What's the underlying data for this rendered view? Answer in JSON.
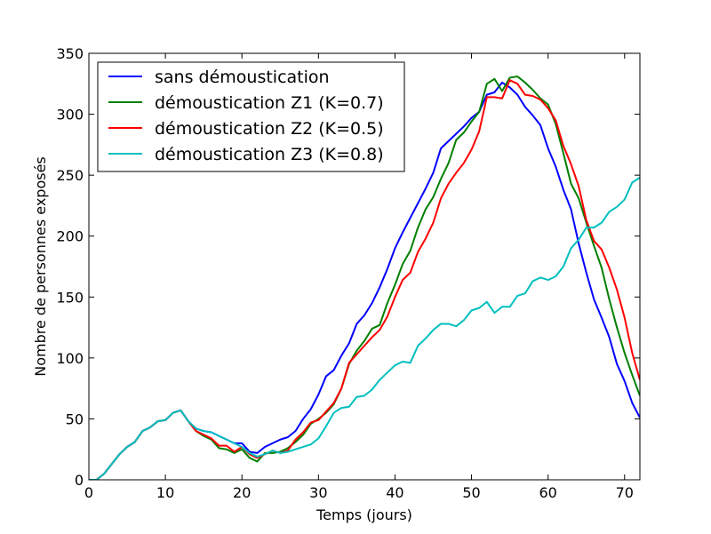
{
  "chart_data": {
    "type": "line",
    "xlabel": "Temps (jours)",
    "ylabel": "Nombre de personnes exposés",
    "xlim": [
      0,
      72
    ],
    "ylim": [
      0,
      350
    ],
    "xticks": [
      0,
      10,
      20,
      30,
      40,
      50,
      60,
      70
    ],
    "yticks": [
      0,
      50,
      100,
      150,
      200,
      250,
      300,
      350
    ],
    "grid": false,
    "legend_position": "top-left",
    "series": [
      {
        "name": "sans démoustication",
        "color": "#0000ff",
        "points": [
          [
            0,
            0
          ],
          [
            1,
            0
          ],
          [
            2,
            5
          ],
          [
            3,
            13
          ],
          [
            4,
            21
          ],
          [
            5,
            27
          ],
          [
            6,
            31
          ],
          [
            7,
            40
          ],
          [
            8,
            43
          ],
          [
            9,
            48
          ],
          [
            10,
            49
          ],
          [
            11,
            55
          ],
          [
            12,
            57
          ],
          [
            13,
            48
          ],
          [
            14,
            42
          ],
          [
            15,
            40
          ],
          [
            16,
            39
          ],
          [
            17,
            36
          ],
          [
            18,
            33
          ],
          [
            19,
            30
          ],
          [
            20,
            30
          ],
          [
            21,
            23
          ],
          [
            22,
            22
          ],
          [
            23,
            27
          ],
          [
            24,
            30
          ],
          [
            25,
            33
          ],
          [
            26,
            35
          ],
          [
            27,
            40
          ],
          [
            28,
            50
          ],
          [
            29,
            58
          ],
          [
            30,
            70
          ],
          [
            31,
            85
          ],
          [
            32,
            90
          ],
          [
            33,
            102
          ],
          [
            34,
            112
          ],
          [
            35,
            128
          ],
          [
            36,
            135
          ],
          [
            37,
            145
          ],
          [
            38,
            158
          ],
          [
            39,
            173
          ],
          [
            40,
            190
          ],
          [
            41,
            203
          ],
          [
            42,
            215
          ],
          [
            43,
            227
          ],
          [
            44,
            239
          ],
          [
            45,
            252
          ],
          [
            46,
            272
          ],
          [
            47,
            278
          ],
          [
            48,
            284
          ],
          [
            49,
            290
          ],
          [
            50,
            297
          ],
          [
            51,
            302
          ],
          [
            52,
            316
          ],
          [
            53,
            318
          ],
          [
            54,
            326
          ],
          [
            55,
            322
          ],
          [
            56,
            316
          ],
          [
            57,
            306
          ],
          [
            58,
            299
          ],
          [
            59,
            291
          ],
          [
            60,
            272
          ],
          [
            61,
            257
          ],
          [
            62,
            238
          ],
          [
            63,
            222
          ],
          [
            64,
            194
          ],
          [
            65,
            170
          ],
          [
            66,
            148
          ],
          [
            67,
            133
          ],
          [
            68,
            117
          ],
          [
            69,
            95
          ],
          [
            70,
            81
          ],
          [
            71,
            63
          ],
          [
            72,
            51
          ]
        ]
      },
      {
        "name": "démoustication Z1 (K=0.7)",
        "color": "#008000",
        "points": [
          [
            0,
            0
          ],
          [
            1,
            0
          ],
          [
            2,
            5
          ],
          [
            3,
            13
          ],
          [
            4,
            21
          ],
          [
            5,
            27
          ],
          [
            6,
            31
          ],
          [
            7,
            40
          ],
          [
            8,
            43
          ],
          [
            9,
            48
          ],
          [
            10,
            49
          ],
          [
            11,
            55
          ],
          [
            12,
            57
          ],
          [
            13,
            48
          ],
          [
            14,
            40
          ],
          [
            15,
            36
          ],
          [
            16,
            33
          ],
          [
            17,
            26
          ],
          [
            18,
            25
          ],
          [
            19,
            22
          ],
          [
            20,
            25
          ],
          [
            21,
            18
          ],
          [
            22,
            15
          ],
          [
            23,
            22
          ],
          [
            24,
            22
          ],
          [
            25,
            23
          ],
          [
            26,
            26
          ],
          [
            27,
            31
          ],
          [
            28,
            37
          ],
          [
            29,
            46
          ],
          [
            30,
            50
          ],
          [
            31,
            55
          ],
          [
            32,
            62
          ],
          [
            33,
            75
          ],
          [
            34,
            95
          ],
          [
            35,
            106
          ],
          [
            36,
            114
          ],
          [
            37,
            124
          ],
          [
            38,
            127
          ],
          [
            39,
            145
          ],
          [
            40,
            160
          ],
          [
            41,
            177
          ],
          [
            42,
            188
          ],
          [
            43,
            207
          ],
          [
            44,
            222
          ],
          [
            45,
            232
          ],
          [
            46,
            247
          ],
          [
            47,
            260
          ],
          [
            48,
            279
          ],
          [
            49,
            285
          ],
          [
            50,
            294
          ],
          [
            51,
            302
          ],
          [
            52,
            325
          ],
          [
            53,
            329
          ],
          [
            54,
            319
          ],
          [
            55,
            330
          ],
          [
            56,
            331
          ],
          [
            57,
            326
          ],
          [
            58,
            320
          ],
          [
            59,
            313
          ],
          [
            60,
            308
          ],
          [
            61,
            292
          ],
          [
            62,
            268
          ],
          [
            63,
            243
          ],
          [
            64,
            231
          ],
          [
            65,
            211
          ],
          [
            66,
            192
          ],
          [
            67,
            174
          ],
          [
            68,
            148
          ],
          [
            69,
            125
          ],
          [
            70,
            104
          ],
          [
            71,
            86
          ],
          [
            72,
            69
          ]
        ]
      },
      {
        "name": "démoustication Z2 (K=0.5)",
        "color": "#ff0000",
        "points": [
          [
            0,
            0
          ],
          [
            1,
            0
          ],
          [
            2,
            5
          ],
          [
            3,
            13
          ],
          [
            4,
            21
          ],
          [
            5,
            27
          ],
          [
            6,
            31
          ],
          [
            7,
            40
          ],
          [
            8,
            43
          ],
          [
            9,
            48
          ],
          [
            10,
            49
          ],
          [
            11,
            55
          ],
          [
            12,
            57
          ],
          [
            13,
            48
          ],
          [
            14,
            40
          ],
          [
            15,
            37
          ],
          [
            16,
            34
          ],
          [
            17,
            28
          ],
          [
            18,
            28
          ],
          [
            19,
            23
          ],
          [
            20,
            27
          ],
          [
            21,
            21
          ],
          [
            22,
            18
          ],
          [
            23,
            21
          ],
          [
            24,
            24
          ],
          [
            25,
            22
          ],
          [
            26,
            24
          ],
          [
            27,
            33
          ],
          [
            28,
            39
          ],
          [
            29,
            47
          ],
          [
            30,
            49
          ],
          [
            31,
            56
          ],
          [
            32,
            63
          ],
          [
            33,
            75
          ],
          [
            34,
            96
          ],
          [
            35,
            103
          ],
          [
            36,
            110
          ],
          [
            37,
            117
          ],
          [
            38,
            123
          ],
          [
            39,
            134
          ],
          [
            40,
            150
          ],
          [
            41,
            164
          ],
          [
            42,
            170
          ],
          [
            43,
            187
          ],
          [
            44,
            198
          ],
          [
            45,
            211
          ],
          [
            46,
            231
          ],
          [
            47,
            243
          ],
          [
            48,
            252
          ],
          [
            49,
            260
          ],
          [
            50,
            271
          ],
          [
            51,
            286
          ],
          [
            52,
            314
          ],
          [
            53,
            314
          ],
          [
            54,
            313
          ],
          [
            55,
            328
          ],
          [
            56,
            325
          ],
          [
            57,
            316
          ],
          [
            58,
            315
          ],
          [
            59,
            312
          ],
          [
            60,
            305
          ],
          [
            61,
            295
          ],
          [
            62,
            274
          ],
          [
            63,
            259
          ],
          [
            64,
            241
          ],
          [
            65,
            213
          ],
          [
            66,
            196
          ],
          [
            67,
            189
          ],
          [
            68,
            174
          ],
          [
            69,
            156
          ],
          [
            70,
            133
          ],
          [
            71,
            104
          ],
          [
            72,
            82
          ]
        ]
      },
      {
        "name": "démoustication Z3 (K=0.8)",
        "color": "#00bfbf",
        "points": [
          [
            0,
            0
          ],
          [
            1,
            0
          ],
          [
            2,
            5
          ],
          [
            3,
            13
          ],
          [
            4,
            21
          ],
          [
            5,
            27
          ],
          [
            6,
            31
          ],
          [
            7,
            40
          ],
          [
            8,
            43
          ],
          [
            9,
            48
          ],
          [
            10,
            49
          ],
          [
            11,
            55
          ],
          [
            12,
            57
          ],
          [
            13,
            48
          ],
          [
            14,
            42
          ],
          [
            15,
            40
          ],
          [
            16,
            39
          ],
          [
            17,
            36
          ],
          [
            18,
            33
          ],
          [
            19,
            30
          ],
          [
            20,
            27
          ],
          [
            21,
            22
          ],
          [
            22,
            19
          ],
          [
            23,
            21
          ],
          [
            24,
            24
          ],
          [
            25,
            22
          ],
          [
            26,
            23
          ],
          [
            27,
            25
          ],
          [
            28,
            27
          ],
          [
            29,
            29
          ],
          [
            30,
            34
          ],
          [
            31,
            44
          ],
          [
            32,
            55
          ],
          [
            33,
            59
          ],
          [
            34,
            60
          ],
          [
            35,
            68
          ],
          [
            36,
            69
          ],
          [
            37,
            74
          ],
          [
            38,
            82
          ],
          [
            39,
            88
          ],
          [
            40,
            94
          ],
          [
            41,
            97
          ],
          [
            42,
            96
          ],
          [
            43,
            110
          ],
          [
            44,
            116
          ],
          [
            45,
            123
          ],
          [
            46,
            128
          ],
          [
            47,
            128
          ],
          [
            48,
            126
          ],
          [
            49,
            131
          ],
          [
            50,
            139
          ],
          [
            51,
            141
          ],
          [
            52,
            146
          ],
          [
            53,
            137
          ],
          [
            54,
            142
          ],
          [
            55,
            142
          ],
          [
            56,
            151
          ],
          [
            57,
            153
          ],
          [
            58,
            163
          ],
          [
            59,
            166
          ],
          [
            60,
            164
          ],
          [
            61,
            167
          ],
          [
            62,
            175
          ],
          [
            63,
            190
          ],
          [
            64,
            197
          ],
          [
            65,
            207
          ],
          [
            66,
            207
          ],
          [
            67,
            211
          ],
          [
            68,
            220
          ],
          [
            69,
            224
          ],
          [
            70,
            230
          ],
          [
            71,
            244
          ],
          [
            72,
            248
          ]
        ]
      }
    ]
  }
}
